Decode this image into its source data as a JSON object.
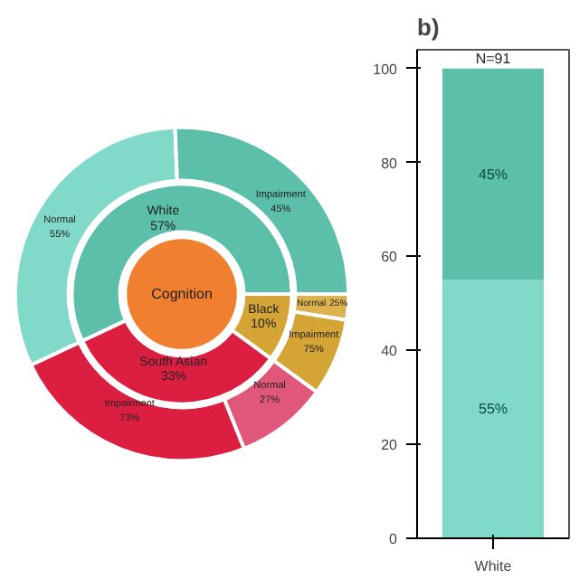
{
  "chart_data": [
    {
      "type": "other",
      "title": "Cognition",
      "categories": [
        "Black",
        "South Asian",
        "White"
      ],
      "values": [
        10,
        33,
        57
      ],
      "value_labels": [
        "10%",
        "33%",
        "57%"
      ],
      "colors": [
        "#d4a535",
        "#dc1f41",
        "#5bbfaa"
      ],
      "series": [
        {
          "name": "Normal",
          "values": [
            25,
            27,
            55
          ],
          "value_labels": [
            "25%",
            "27%",
            "55%"
          ],
          "colors": [
            "#dbb24c",
            "#e0577a",
            "#80d9c9"
          ]
        },
        {
          "name": "Impairment",
          "values": [
            75,
            73,
            45
          ],
          "value_labels": [
            "75%",
            "73%",
            "45%"
          ],
          "colors": [
            "#d4a535",
            "#dc1f41",
            "#5bbfaa"
          ]
        }
      ]
    },
    {
      "type": "bar",
      "title": "b)",
      "stacked": true,
      "categories": [
        "White"
      ],
      "ylim": [
        0,
        104
      ],
      "yticks": [
        0,
        20,
        40,
        60,
        80,
        100
      ],
      "annotations": [
        {
          "text": "N=91",
          "x": "White",
          "y": 100
        }
      ],
      "series": [
        {
          "color": "#80d9c9",
          "values": [
            55
          ],
          "value_labels": [
            "55%"
          ]
        },
        {
          "color": "#5bbfaa",
          "values": [
            45
          ],
          "value_labels": [
            "45%"
          ]
        }
      ]
    }
  ]
}
